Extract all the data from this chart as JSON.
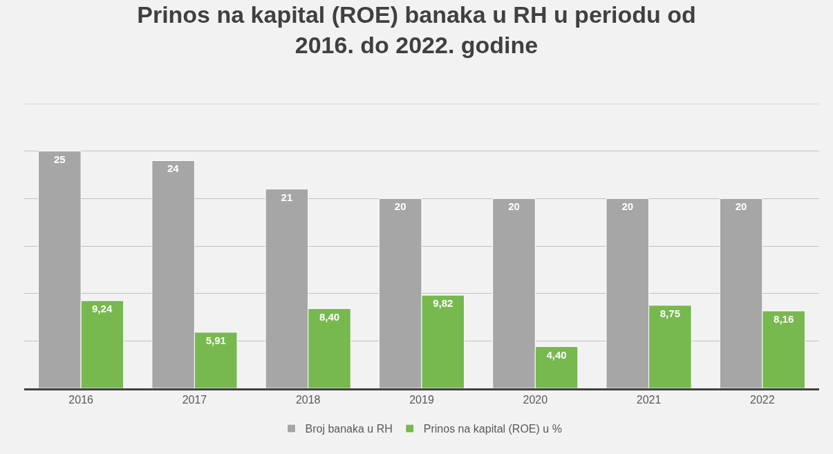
{
  "chart_data": {
    "type": "bar",
    "title": "Prinos na kapital (ROE) banaka u RH u periodu od\n2016. do 2022. godine",
    "categories": [
      "2016",
      "2017",
      "2018",
      "2019",
      "2020",
      "2021",
      "2022"
    ],
    "series": [
      {
        "name": "Broj banaka u RH",
        "color": "#a6a6a6",
        "values": [
          25,
          24,
          21,
          20,
          20,
          20,
          20
        ],
        "value_labels": [
          "25",
          "24",
          "21",
          "20",
          "20",
          "20",
          "20"
        ]
      },
      {
        "name": "Prinos na kapital (ROE) u %",
        "color": "#77b84f",
        "values": [
          9.24,
          5.91,
          8.4,
          9.82,
          4.4,
          8.75,
          8.16
        ],
        "value_labels": [
          "9,24",
          "5,91",
          "8,40",
          "9,82",
          "4,40",
          "8,75",
          "8,16"
        ]
      }
    ],
    "ylim": [
      0,
      30
    ],
    "yticks": [
      {
        "value": 0,
        "label": null
      },
      {
        "value": 5,
        "label": null
      },
      {
        "value": 10,
        "label": null
      },
      {
        "value": 15,
        "label": null
      },
      {
        "value": 20,
        "label": null
      },
      {
        "value": 25,
        "label": null
      },
      {
        "value": 30,
        "label": null
      }
    ],
    "grid": "y",
    "legend": "bottom",
    "tick_labels": "x"
  }
}
